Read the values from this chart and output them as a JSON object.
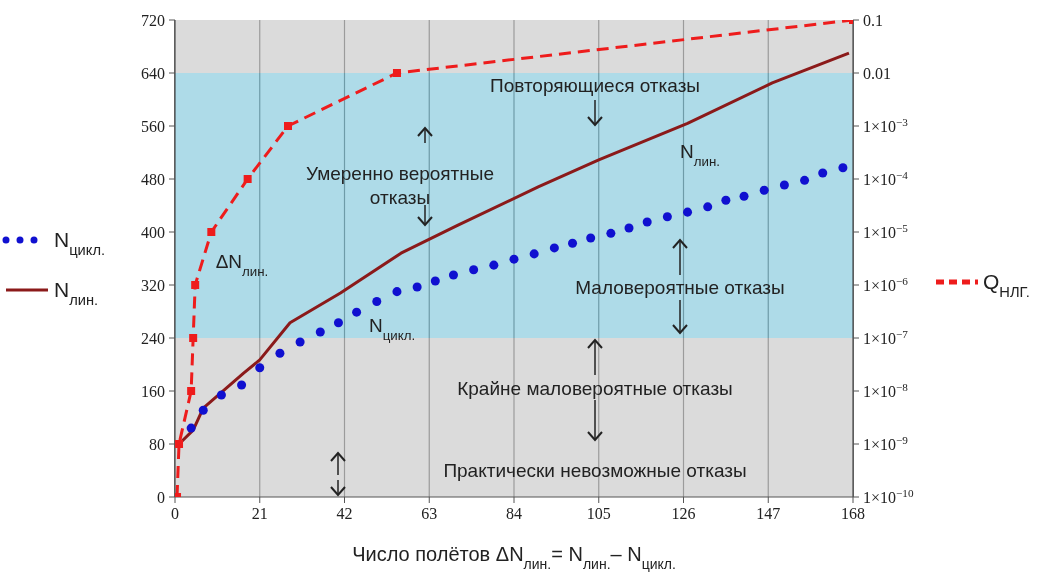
{
  "chart_data": {
    "type": "line",
    "xlabel": "Число полётов  ΔN$_{лин.}$= N$_{лин.}$– N$_{цикл.}$",
    "xlim": [
      0,
      168
    ],
    "xticks": [
      0,
      21,
      42,
      63,
      84,
      105,
      126,
      147,
      168
    ],
    "ylim": [
      0,
      720
    ],
    "yticks": [
      0,
      80,
      160,
      240,
      320,
      400,
      480,
      560,
      640,
      720
    ],
    "y2lim": [
      1e-10,
      0.1
    ],
    "y2ticks": [
      {
        "value": 1e-10,
        "label": "1×10$^{−10}$"
      },
      {
        "value": 1e-09,
        "label": "1×10$^{−9}$"
      },
      {
        "value": 1e-08,
        "label": "1×10$^{−8}$"
      },
      {
        "value": 1e-07,
        "label": "1×10$^{−7}$"
      },
      {
        "value": 1e-06,
        "label": "1×10$^{−6}$"
      },
      {
        "value": 1e-05,
        "label": "1×10$^{−5}$"
      },
      {
        "value": 0.0001,
        "label": "1×10$^{−4}$"
      },
      {
        "value": 0.001,
        "label": "1×10$^{−3}$"
      },
      0.01,
      0.1
    ],
    "log": "y2",
    "grid": "x",
    "legend": "left",
    "series": [
      {
        "name": "N$_{цикл.}$",
        "type": "scatter",
        "marker": "circle",
        "color": "#1010d0",
        "x": [
          4,
          7,
          11.5,
          16.5,
          21,
          26,
          31,
          36,
          40.5,
          45,
          50,
          55,
          60,
          64.5,
          69,
          74,
          79,
          84,
          89,
          94,
          98.5,
          103,
          108,
          112.5,
          117,
          122,
          127,
          132,
          136.5,
          141,
          146,
          151,
          156,
          160.5,
          165.5
        ],
        "values": [
          104,
          131,
          154,
          169,
          195,
          217,
          234,
          249,
          263,
          279,
          295,
          310,
          317,
          326,
          335,
          343,
          350,
          359,
          367,
          376,
          383,
          391,
          398,
          406,
          415,
          423,
          430,
          438,
          448,
          454,
          463,
          471,
          478,
          489,
          497
        ]
      },
      {
        "name": "N$_{лин.}$",
        "marker": "none",
        "line_style": "solid",
        "color": "#8b1a1a",
        "x": [
          1,
          4.5,
          7,
          17,
          21,
          28.5,
          41,
          56,
          70,
          90,
          105,
          127,
          148,
          167
        ],
        "values": [
          80,
          101,
          134,
          187,
          207,
          263,
          308,
          368,
          410,
          468,
          509,
          564,
          625,
          670
        ]
      },
      {
        "name": "Q$_{НЛГ.}$",
        "axis": "y2",
        "marker": "square",
        "line_style": "dashed",
        "color": "#ee1c1c",
        "x": [
          0.5,
          1,
          4,
          4.5,
          5,
          9,
          18,
          28,
          55,
          168
        ],
        "values": [
          1e-10,
          1e-09,
          1e-08,
          1e-07,
          1e-06,
          1e-05,
          0.0001,
          0.001,
          0.01,
          0.1
        ]
      }
    ],
    "bands": [
      {
        "axis": "y2",
        "from": 1e-10,
        "to": 1e-07,
        "color": "#cfcfcf"
      },
      {
        "axis": "y2",
        "from": 1e-07,
        "to": 0.01,
        "color": "#93cfe0"
      },
      {
        "axis": "y2",
        "from": 0.01,
        "to": 0.1,
        "color": "#cfcfcf"
      }
    ],
    "annotations": [
      "Повторяющиеся  отказы",
      "Умеренно вероятные\nотказы",
      "Маловероятные отказы",
      "Крайне маловероятные отказы",
      "Практически невозможные отказы",
      "ΔN$_{лин.}$",
      "N$_{лин.}$",
      "N$_{цикл.}$"
    ]
  }
}
